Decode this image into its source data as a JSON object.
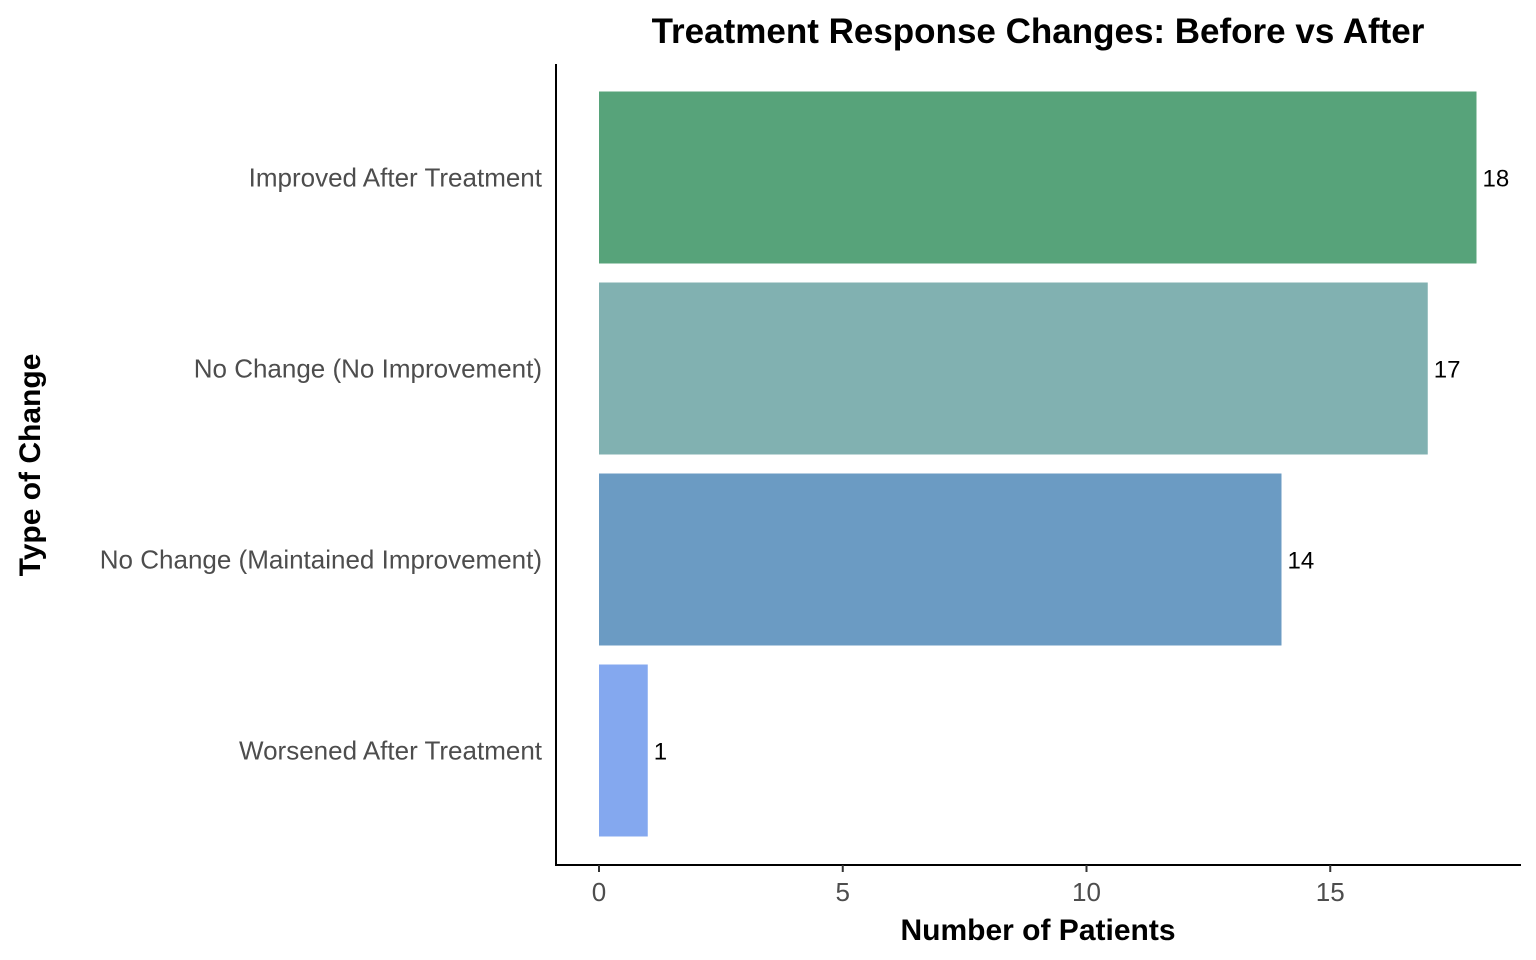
{
  "chart_data": {
    "type": "bar",
    "orientation": "horizontal",
    "title": "Treatment Response Changes: Before vs After",
    "xlabel": "Number of Patients",
    "ylabel": "Type of Change",
    "categories": [
      "Improved After Treatment",
      "No Change (No Improvement)",
      "No Change (Maintained Improvement)",
      "Worsened After Treatment"
    ],
    "values": [
      18,
      17,
      14,
      1
    ],
    "data_labels": [
      "18",
      "17",
      "14",
      "1"
    ],
    "colors": [
      "#57a37a",
      "#81b1b1",
      "#6b9bc3",
      "#84a8ef"
    ],
    "xlim": [
      0,
      18
    ],
    "xticks": [
      0,
      5,
      10,
      15
    ],
    "xtick_labels": [
      "0",
      "5",
      "10",
      "15"
    ],
    "grid": false,
    "legend": "none"
  }
}
